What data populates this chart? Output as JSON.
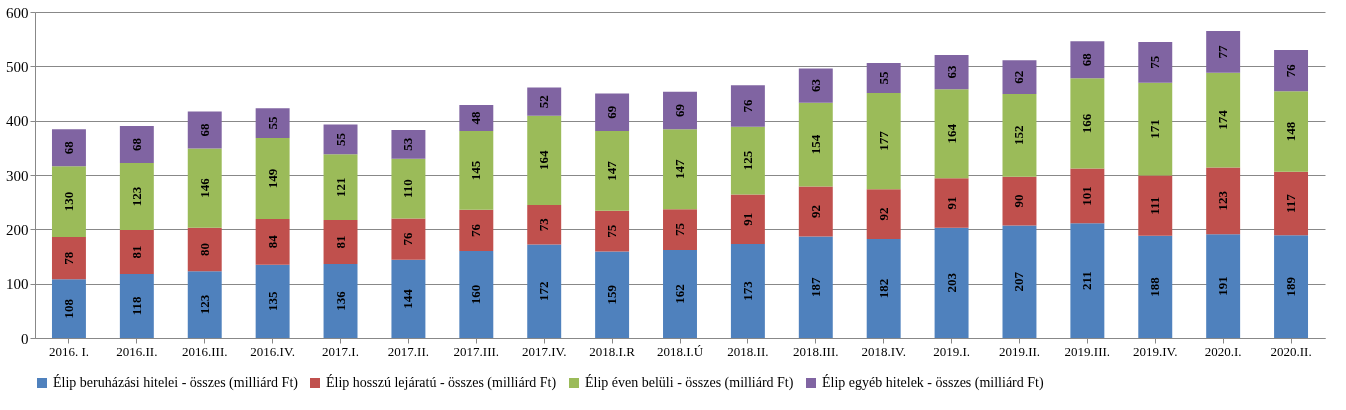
{
  "chart_data": {
    "type": "bar",
    "stacked": true,
    "data_labels": true,
    "grid": "y",
    "legend": "bottom",
    "categories": [
      "2016. I.",
      "2016.II.",
      "2016.III.",
      "2016.IV.",
      "2017.I.",
      "2017.II.",
      "2017.III.",
      "2017.IV.",
      "2018.I.R",
      "2018.I.Ú",
      "2018.II.",
      "2018.III.",
      "2018.IV.",
      "2019.I.",
      "2019.II.",
      "2019.III.",
      "2019.IV.",
      "2020.I.",
      "2020.II."
    ],
    "ylim": [
      0,
      600
    ],
    "yticks": [
      0,
      100,
      200,
      300,
      400,
      500,
      600
    ],
    "series": [
      {
        "name": "Élip beruházási hitelei - összes (milliárd Ft)",
        "color": "#4f81bd",
        "values": [
          108,
          118,
          123,
          135,
          136,
          144,
          160,
          172,
          159,
          162,
          173,
          187,
          182,
          203,
          207,
          211,
          188,
          191,
          189
        ]
      },
      {
        "name": "Élip hosszú lejáratú - összes (milliárd Ft)",
        "color": "#c0504d",
        "values": [
          78,
          81,
          80,
          84,
          81,
          76,
          76,
          73,
          75,
          75,
          91,
          92,
          92,
          91,
          90,
          101,
          111,
          123,
          117
        ]
      },
      {
        "name": "Élip éven belüli - összes (milliárd Ft)",
        "color": "#9bbb59",
        "values": [
          130,
          123,
          146,
          149,
          121,
          110,
          145,
          164,
          147,
          147,
          125,
          154,
          177,
          164,
          152,
          166,
          171,
          174,
          148
        ]
      },
      {
        "name": "Élip egyéb hitelek - összes (milliárd Ft)",
        "color": "#8064a2",
        "values": [
          68,
          68,
          68,
          55,
          55,
          53,
          48,
          52,
          69,
          69,
          76,
          63,
          55,
          63,
          62,
          68,
          75,
          77,
          76
        ]
      }
    ]
  }
}
